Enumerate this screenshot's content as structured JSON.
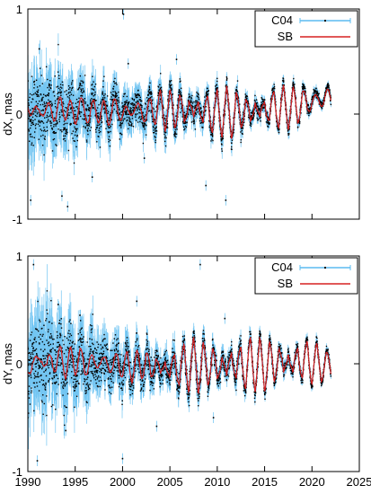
{
  "chart_data": [
    {
      "type": "line",
      "ylabel": "dX, mas",
      "ylim": [
        -1,
        1
      ],
      "yticks": [
        -1,
        0,
        1
      ],
      "xlim": [
        1990,
        2025
      ],
      "xticks": [
        1990,
        1995,
        2000,
        2005,
        2010,
        2015,
        2020,
        2025
      ],
      "show_x_tick_labels": false,
      "grid": false,
      "legend_position": "top-right",
      "series": [
        {
          "name": "C04",
          "style": "points with error bars",
          "point_color": "#000000",
          "errorbar_color": "#5bbcf0",
          "x": [
            1990.0,
            1990.5,
            1991.0,
            1991.5,
            1992.0,
            1992.5,
            1993.0,
            1993.5,
            1994.0,
            1994.5,
            1995.0,
            1995.5,
            1996.0,
            1996.5,
            1997.0,
            1997.5,
            1998.0,
            1998.5,
            1999.0,
            1999.5,
            2000.0,
            2000.5,
            2001.0,
            2001.5,
            2002.0,
            2002.5,
            2003.0,
            2003.5,
            2004.0,
            2004.5,
            2005.0,
            2005.5,
            2006.0,
            2006.5,
            2007.0,
            2007.5,
            2008.0,
            2008.5,
            2009.0,
            2009.5,
            2010.0,
            2010.5,
            2011.0,
            2011.5,
            2012.0,
            2012.5,
            2013.0,
            2013.5,
            2014.0,
            2014.5,
            2015.0,
            2015.5,
            2016.0,
            2016.5,
            2017.0,
            2017.5,
            2018.0,
            2018.5,
            2019.0,
            2019.5,
            2020.0,
            2020.5,
            2021.0,
            2021.5,
            2022.0
          ],
          "y": [
            0.05,
            0.12,
            -0.05,
            0.1,
            0.0,
            0.08,
            -0.02,
            0.14,
            0.02,
            0.06,
            -0.03,
            0.1,
            0.05,
            -0.02,
            0.08,
            0.0,
            0.06,
            -0.05,
            0.1,
            0.02,
            0.05,
            -0.04,
            0.12,
            0.0,
            0.1,
            -0.08,
            0.15,
            -0.05,
            0.18,
            -0.1,
            0.2,
            -0.12,
            0.22,
            -0.15,
            0.25,
            -0.15,
            0.26,
            -0.18,
            0.25,
            -0.2,
            0.22,
            -0.18,
            0.22,
            -0.2,
            0.2,
            -0.16,
            0.22,
            -0.18,
            0.24,
            -0.15,
            0.22,
            -0.12,
            0.25,
            -0.1,
            0.24,
            -0.08,
            0.22,
            -0.05,
            0.26,
            0.02,
            0.22,
            0.1,
            0.2,
            0.18,
            0.2
          ],
          "spread": [
            0.35,
            0.35,
            0.32,
            0.32,
            0.3,
            0.3,
            0.28,
            0.28,
            0.26,
            0.26,
            0.24,
            0.24,
            0.22,
            0.22,
            0.2,
            0.2,
            0.18,
            0.18,
            0.18,
            0.18,
            0.17,
            0.17,
            0.16,
            0.16,
            0.15,
            0.15,
            0.14,
            0.14,
            0.13,
            0.13,
            0.12,
            0.12,
            0.11,
            0.11,
            0.1,
            0.1,
            0.1,
            0.1,
            0.09,
            0.09,
            0.09,
            0.09,
            0.08,
            0.08,
            0.08,
            0.08,
            0.07,
            0.07,
            0.07,
            0.07,
            0.06,
            0.06,
            0.06,
            0.06,
            0.06,
            0.06,
            0.05,
            0.05,
            0.05,
            0.05,
            0.05,
            0.05,
            0.04,
            0.04,
            0.04
          ]
        },
        {
          "name": "SB",
          "style": "line",
          "color": "#d62020",
          "x": [
            1990.0,
            1990.5,
            1991.0,
            1991.5,
            1992.0,
            1992.5,
            1993.0,
            1993.5,
            1994.0,
            1994.5,
            1995.0,
            1995.5,
            1996.0,
            1996.5,
            1997.0,
            1997.5,
            1998.0,
            1998.5,
            1999.0,
            1999.5,
            2000.0,
            2000.5,
            2001.0,
            2001.5,
            2002.0,
            2002.5,
            2003.0,
            2003.5,
            2004.0,
            2004.5,
            2005.0,
            2005.5,
            2006.0,
            2006.5,
            2007.0,
            2007.5,
            2008.0,
            2008.5,
            2009.0,
            2009.5,
            2010.0,
            2010.5,
            2011.0,
            2011.5,
            2012.0,
            2012.5,
            2013.0,
            2013.5,
            2014.0,
            2014.5,
            2015.0,
            2015.5,
            2016.0,
            2016.5,
            2017.0,
            2017.5,
            2018.0,
            2018.5,
            2019.0,
            2019.5,
            2020.0,
            2020.5,
            2021.0,
            2021.5,
            2022.0
          ],
          "y": [
            0.04,
            0.1,
            -0.04,
            0.09,
            0.0,
            0.07,
            -0.02,
            0.12,
            0.02,
            0.05,
            -0.02,
            0.09,
            0.04,
            -0.02,
            0.07,
            0.0,
            0.05,
            -0.04,
            0.09,
            0.02,
            0.04,
            -0.03,
            0.1,
            0.0,
            0.09,
            -0.07,
            0.13,
            -0.04,
            0.16,
            -0.09,
            0.18,
            -0.1,
            0.2,
            -0.13,
            0.22,
            -0.13,
            0.23,
            -0.16,
            0.22,
            -0.18,
            0.2,
            -0.16,
            0.2,
            -0.18,
            0.18,
            -0.14,
            0.2,
            -0.16,
            0.22,
            -0.13,
            0.2,
            -0.1,
            0.22,
            -0.09,
            0.22,
            -0.07,
            0.2,
            -0.04,
            0.23,
            0.02,
            0.2,
            0.09,
            0.18,
            0.16,
            0.18
          ]
        }
      ],
      "outliers": [
        {
          "x": 1990.3,
          "y": -0.82
        },
        {
          "x": 1991.2,
          "y": 0.62
        },
        {
          "x": 1993.6,
          "y": -0.78
        },
        {
          "x": 1994.2,
          "y": -0.88
        },
        {
          "x": 1996.8,
          "y": -0.6
        },
        {
          "x": 2000.1,
          "y": 0.95
        },
        {
          "x": 2000.6,
          "y": 0.48
        },
        {
          "x": 2002.3,
          "y": -0.42
        },
        {
          "x": 2008.8,
          "y": -0.68
        },
        {
          "x": 2010.9,
          "y": -0.82
        },
        {
          "x": 2005.7,
          "y": 0.52
        }
      ]
    },
    {
      "type": "line",
      "ylabel": "dY, mas",
      "xlabel": "",
      "ylim": [
        -1,
        1
      ],
      "yticks": [
        -1,
        0,
        1
      ],
      "xlim": [
        1990,
        2025
      ],
      "xticks": [
        1990,
        1995,
        2000,
        2005,
        2010,
        2015,
        2020,
        2025
      ],
      "show_x_tick_labels": true,
      "grid": false,
      "legend_position": "top-right",
      "series": [
        {
          "name": "C04",
          "style": "points with error bars",
          "point_color": "#000000",
          "errorbar_color": "#5bbcf0",
          "x": [
            1990.0,
            1990.5,
            1991.0,
            1991.5,
            1992.0,
            1992.5,
            1993.0,
            1993.5,
            1994.0,
            1994.5,
            1995.0,
            1995.5,
            1996.0,
            1996.5,
            1997.0,
            1997.5,
            1998.0,
            1998.5,
            1999.0,
            1999.5,
            2000.0,
            2000.5,
            2001.0,
            2001.5,
            2002.0,
            2002.5,
            2003.0,
            2003.5,
            2004.0,
            2004.5,
            2005.0,
            2005.5,
            2006.0,
            2006.5,
            2007.0,
            2007.5,
            2008.0,
            2008.5,
            2009.0,
            2009.5,
            2010.0,
            2010.5,
            2011.0,
            2011.5,
            2012.0,
            2012.5,
            2013.0,
            2013.5,
            2014.0,
            2014.5,
            2015.0,
            2015.5,
            2016.0,
            2016.5,
            2017.0,
            2017.5,
            2018.0,
            2018.5,
            2019.0,
            2019.5,
            2020.0,
            2020.5,
            2021.0,
            2021.5,
            2022.0
          ],
          "y": [
            -0.15,
            0.1,
            -0.05,
            0.15,
            -0.1,
            0.12,
            -0.06,
            0.14,
            -0.08,
            0.1,
            -0.04,
            0.12,
            -0.1,
            0.08,
            -0.06,
            0.1,
            -0.05,
            0.06,
            -0.08,
            0.08,
            -0.1,
            0.05,
            -0.12,
            0.06,
            -0.1,
            0.1,
            -0.18,
            0.14,
            -0.22,
            0.14,
            -0.24,
            0.16,
            -0.25,
            0.18,
            -0.24,
            0.2,
            -0.25,
            0.18,
            -0.22,
            0.2,
            -0.25,
            0.18,
            -0.24,
            0.22,
            -0.22,
            0.2,
            -0.25,
            0.22,
            -0.22,
            0.2,
            -0.24,
            0.22,
            -0.22,
            0.24,
            -0.2,
            0.22,
            -0.2,
            0.24,
            -0.18,
            0.22,
            -0.16,
            0.14,
            -0.1,
            0.05,
            -0.08
          ],
          "spread": [
            0.4,
            0.4,
            0.38,
            0.38,
            0.35,
            0.35,
            0.32,
            0.32,
            0.3,
            0.3,
            0.28,
            0.28,
            0.25,
            0.25,
            0.22,
            0.22,
            0.2,
            0.2,
            0.19,
            0.19,
            0.18,
            0.18,
            0.16,
            0.16,
            0.15,
            0.15,
            0.14,
            0.14,
            0.13,
            0.13,
            0.12,
            0.12,
            0.11,
            0.11,
            0.1,
            0.1,
            0.1,
            0.1,
            0.09,
            0.09,
            0.09,
            0.09,
            0.08,
            0.08,
            0.08,
            0.08,
            0.07,
            0.07,
            0.07,
            0.07,
            0.06,
            0.06,
            0.06,
            0.06,
            0.06,
            0.06,
            0.05,
            0.05,
            0.05,
            0.05,
            0.05,
            0.05,
            0.04,
            0.04,
            0.04
          ]
        },
        {
          "name": "SB",
          "style": "line",
          "color": "#d62020",
          "x": [
            1990.0,
            1990.5,
            1991.0,
            1991.5,
            1992.0,
            1992.5,
            1993.0,
            1993.5,
            1994.0,
            1994.5,
            1995.0,
            1995.5,
            1996.0,
            1996.5,
            1997.0,
            1997.5,
            1998.0,
            1998.5,
            1999.0,
            1999.5,
            2000.0,
            2000.5,
            2001.0,
            2001.5,
            2002.0,
            2002.5,
            2003.0,
            2003.5,
            2004.0,
            2004.5,
            2005.0,
            2005.5,
            2006.0,
            2006.5,
            2007.0,
            2007.5,
            2008.0,
            2008.5,
            2009.0,
            2009.5,
            2010.0,
            2010.5,
            2011.0,
            2011.5,
            2012.0,
            2012.5,
            2013.0,
            2013.5,
            2014.0,
            2014.5,
            2015.0,
            2015.5,
            2016.0,
            2016.5,
            2017.0,
            2017.5,
            2018.0,
            2018.5,
            2019.0,
            2019.5,
            2020.0,
            2020.5,
            2021.0,
            2021.5,
            2022.0
          ],
          "y": [
            -0.12,
            0.08,
            -0.04,
            0.12,
            -0.08,
            0.1,
            -0.05,
            0.12,
            -0.07,
            0.08,
            -0.03,
            0.1,
            -0.08,
            0.07,
            -0.05,
            0.08,
            -0.04,
            0.05,
            -0.07,
            0.07,
            -0.08,
            0.04,
            -0.1,
            0.05,
            -0.09,
            0.09,
            -0.16,
            0.12,
            -0.2,
            0.12,
            -0.22,
            0.14,
            -0.22,
            0.16,
            -0.22,
            0.18,
            -0.22,
            0.16,
            -0.2,
            0.18,
            -0.22,
            0.16,
            -0.22,
            0.2,
            -0.2,
            0.18,
            -0.22,
            0.2,
            -0.2,
            0.18,
            -0.22,
            0.2,
            -0.2,
            0.22,
            -0.18,
            0.2,
            -0.18,
            0.22,
            -0.16,
            0.2,
            -0.14,
            0.12,
            -0.09,
            0.04,
            -0.07
          ]
        }
      ],
      "outliers": [
        {
          "x": 1990.6,
          "y": 0.92
        },
        {
          "x": 1991.0,
          "y": -0.9
        },
        {
          "x": 1993.2,
          "y": 0.55
        },
        {
          "x": 1994.0,
          "y": -0.62
        },
        {
          "x": 1995.5,
          "y": 0.45
        },
        {
          "x": 2000.0,
          "y": -0.88
        },
        {
          "x": 2001.5,
          "y": 0.58
        },
        {
          "x": 2003.6,
          "y": -0.58
        },
        {
          "x": 2008.2,
          "y": 0.92
        },
        {
          "x": 2009.6,
          "y": -0.5
        },
        {
          "x": 2010.8,
          "y": 0.42
        }
      ]
    }
  ]
}
